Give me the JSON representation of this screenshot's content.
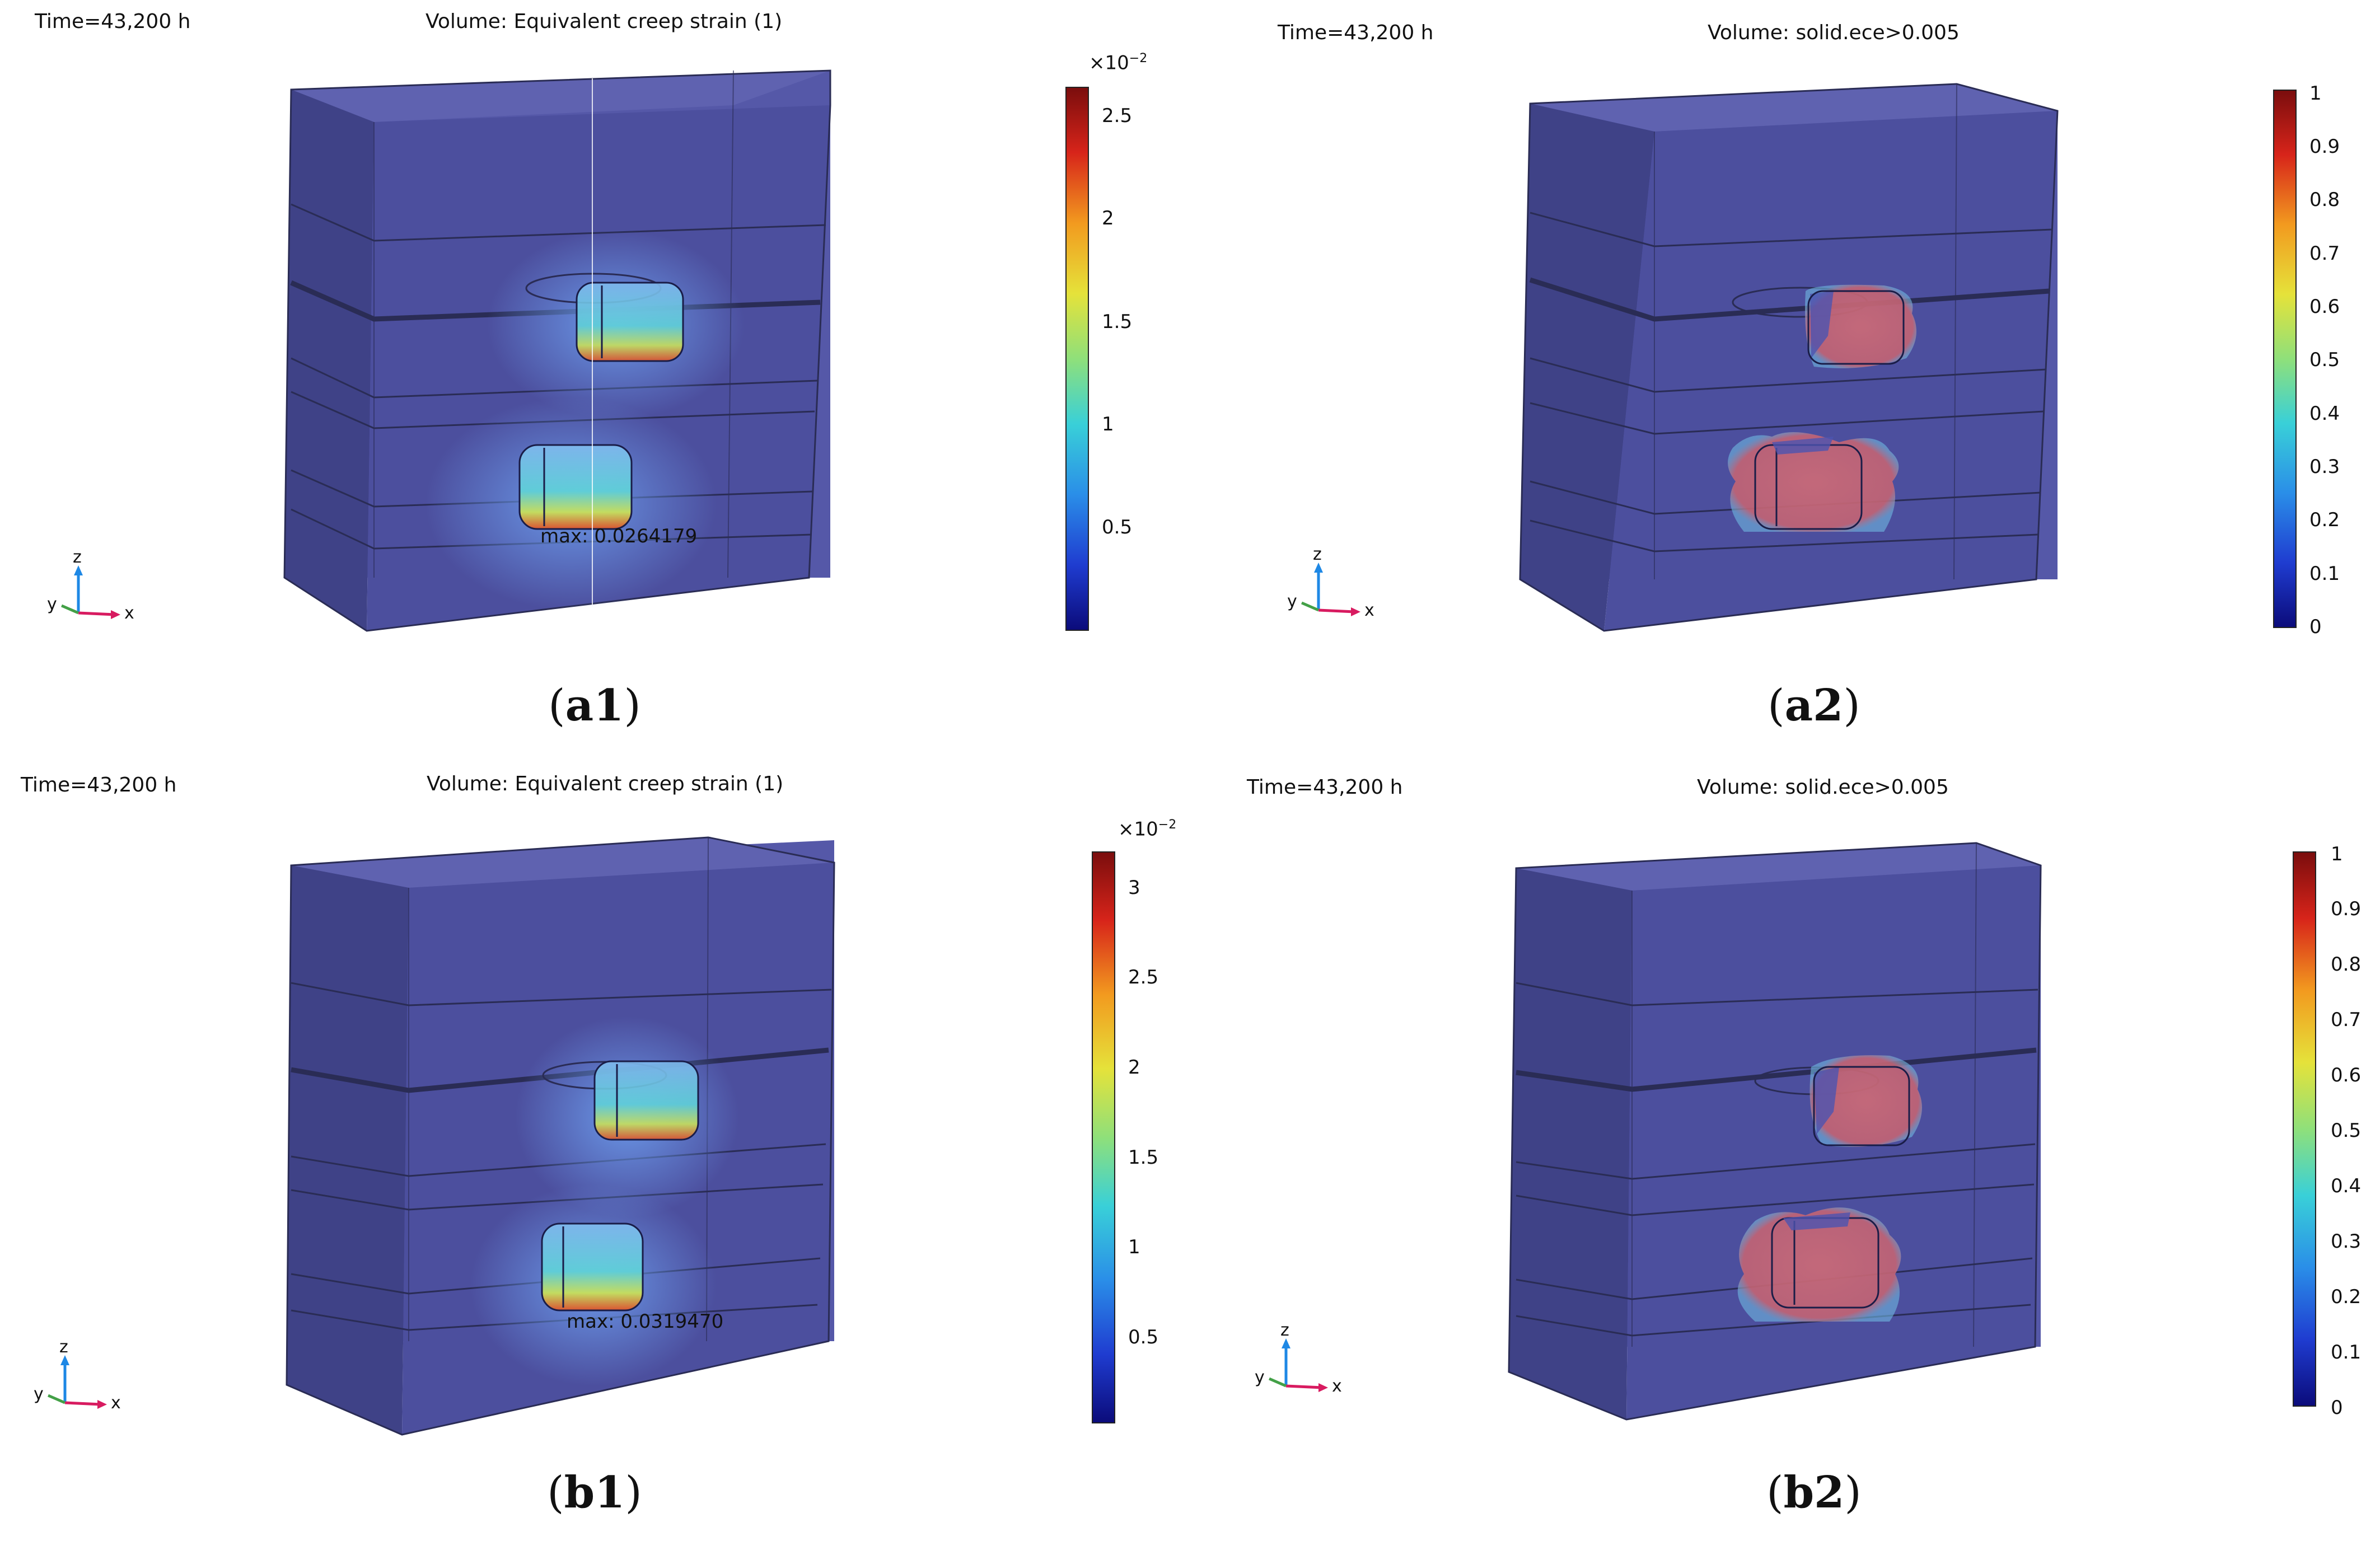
{
  "panels": {
    "a1": {
      "time": "Time=43,200 h",
      "volume": "Volume: Equivalent creep strain (1)",
      "max": "max: 0.0264179",
      "colorbar": {
        "scale": "×10",
        "exponent": "−2",
        "ticks": [
          "2.5",
          "2",
          "1.5",
          "1",
          "0.5"
        ]
      },
      "caption": {
        "letters": "a1"
      },
      "axes": {
        "z": "z",
        "y": "y",
        "x": "x"
      }
    },
    "a2": {
      "time": "Time=43,200 h",
      "volume": "Volume: solid.ece>0.005",
      "colorbar": {
        "ticks": [
          "1",
          "0.9",
          "0.8",
          "0.7",
          "0.6",
          "0.5",
          "0.4",
          "0.3",
          "0.2",
          "0.1",
          "0"
        ]
      },
      "caption": {
        "letters": "a2"
      },
      "axes": {
        "z": "z",
        "y": "y",
        "x": "x"
      }
    },
    "b1": {
      "time": "Time=43,200 h",
      "volume": "Volume: Equivalent creep strain (1)",
      "max": "max: 0.0319470",
      "colorbar": {
        "scale": "×10",
        "exponent": "−2",
        "ticks": [
          "3",
          "2.5",
          "2",
          "1.5",
          "1",
          "0.5"
        ]
      },
      "caption": {
        "letters": "b1"
      },
      "axes": {
        "z": "z",
        "y": "y",
        "x": "x"
      }
    },
    "b2": {
      "time": "Time=43,200 h",
      "volume": "Volume: solid.ece>0.005",
      "colorbar": {
        "ticks": [
          "1",
          "0.9",
          "0.8",
          "0.7",
          "0.6",
          "0.5",
          "0.4",
          "0.3",
          "0.2",
          "0.1",
          "0"
        ]
      },
      "caption": {
        "letters": "b2"
      },
      "axes": {
        "z": "z",
        "y": "y",
        "x": "x"
      }
    }
  },
  "colors": {
    "block": "#4c4f9e",
    "edge": "#2a2c55",
    "colormap": [
      "#0b0b7a",
      "#1f3cd0",
      "#2a8ee8",
      "#39d0d8",
      "#8fe07a",
      "#e5e23a",
      "#f29a1f",
      "#d7241a",
      "#7a0d0d"
    ],
    "axis_x": "#d81b60",
    "axis_y": "#43a047",
    "axis_z": "#1e88e5"
  }
}
